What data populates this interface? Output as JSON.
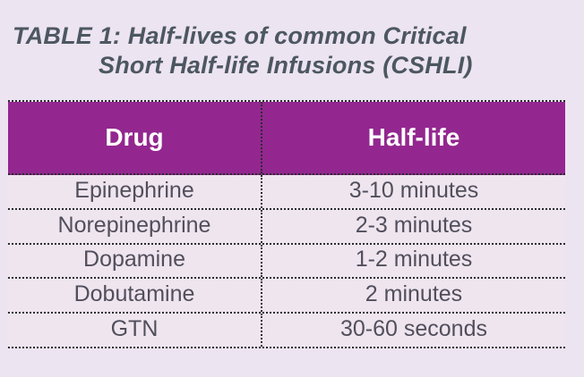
{
  "caption": {
    "line1": "TABLE 1: Half-lives of common Critical",
    "line2": "Short Half-life Infusions (CSHLI)"
  },
  "table": {
    "headers": [
      "Drug",
      "Half-life"
    ],
    "rows": [
      {
        "drug": "Epinephrine",
        "half_life": "3-10 minutes"
      },
      {
        "drug": "Norepinephrine",
        "half_life": "2-3 minutes"
      },
      {
        "drug": "Dopamine",
        "half_life": "1-2 minutes"
      },
      {
        "drug": "Dobutamine",
        "half_life": "2 minutes"
      },
      {
        "drug": "GTN",
        "half_life": "30-60 seconds"
      }
    ]
  },
  "colors": {
    "page_bg": "#ece4f0",
    "row_bg": "#efe5ef",
    "header_bg": "#93278f",
    "header_text": "#ffffff",
    "title_text": "#4c5761",
    "body_text": "#514f5c",
    "border_color": "#2b2b30"
  }
}
